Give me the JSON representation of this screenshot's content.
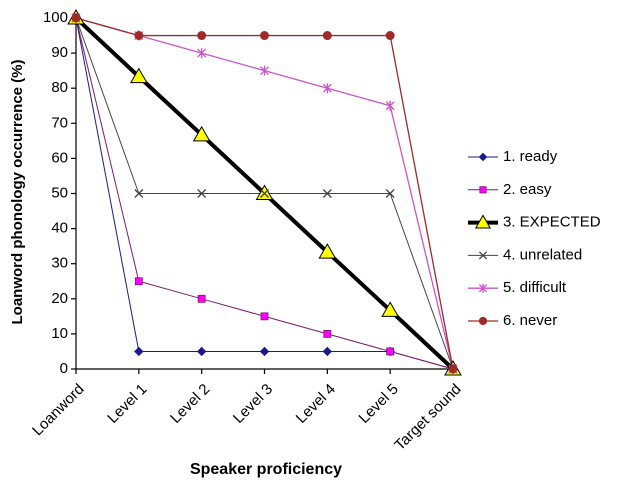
{
  "chart_data": {
    "type": "line",
    "x_label": "Speaker  proficiency",
    "y_label": "Loanword phonology occurrence (%)",
    "categories": [
      "Loanword",
      "Level 1",
      "Level 2",
      "Level 3",
      "Level 4",
      "Level 5",
      "Target sound"
    ],
    "ylim": [
      0,
      100
    ],
    "yticks": [
      0,
      10,
      20,
      30,
      40,
      50,
      60,
      70,
      80,
      90,
      100
    ],
    "grid": false,
    "legend": "right",
    "series": [
      {
        "name": "1. ready",
        "color": "#1a1a8c",
        "marker": "diamond",
        "marker_fill": "#1a1a8c",
        "line_width": 1,
        "values": [
          100,
          5,
          5,
          5,
          5,
          5,
          0
        ]
      },
      {
        "name": "2. easy",
        "color": "#7a1a6a",
        "marker": "square",
        "marker_fill": "#ff00ff",
        "line_width": 1,
        "values": [
          100,
          25,
          20,
          15,
          10,
          5,
          0
        ]
      },
      {
        "name": "3. EXPECTED",
        "color": "#000000",
        "marker": "triangle",
        "marker_fill": "#ffff00",
        "line_width": 4,
        "values": [
          100,
          83.3,
          66.7,
          50,
          33.3,
          16.7,
          0
        ]
      },
      {
        "name": "4. unrelated",
        "color": "#444444",
        "marker": "x",
        "marker_fill": "#444444",
        "line_width": 1,
        "values": [
          100,
          50,
          50,
          50,
          50,
          50,
          0
        ]
      },
      {
        "name": "5. difficult",
        "color": "#cc55cc",
        "marker": "star",
        "marker_fill": "#cc55cc",
        "line_width": 1.3,
        "values": [
          100,
          95,
          90,
          85,
          80,
          75,
          0
        ]
      },
      {
        "name": "6. never",
        "color": "#a02a2a",
        "marker": "circle",
        "marker_fill": "#a02a2a",
        "line_width": 1.3,
        "values": [
          100,
          95,
          95,
          95,
          95,
          95,
          0
        ]
      }
    ]
  }
}
